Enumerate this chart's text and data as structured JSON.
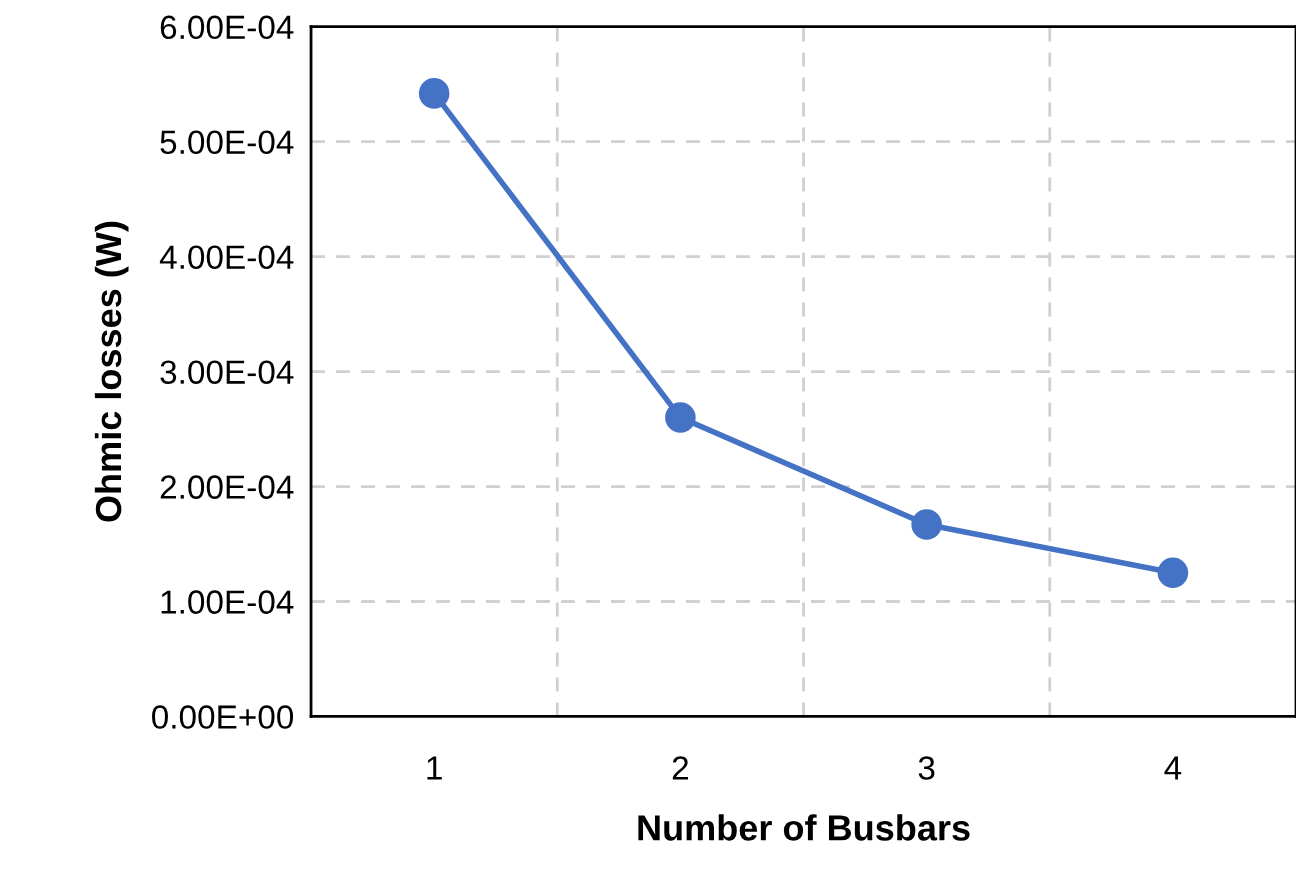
{
  "chart_data": {
    "type": "line",
    "xlabel": "Number of Busbars",
    "ylabel": "Ohmic losses (W)",
    "categories": [
      "1",
      "2",
      "3",
      "4"
    ],
    "series": [
      {
        "color": "#4472c4",
        "values": [
          0.000542,
          0.00026,
          0.000167,
          0.000125
        ]
      }
    ],
    "ylim": [
      0,
      0.0006
    ],
    "yticks": [
      {
        "value": 0,
        "label": "0.00E+00"
      },
      {
        "value": 0.0001,
        "label": "1.00E-04"
      },
      {
        "value": 0.0002,
        "label": "2.00E-04"
      },
      {
        "value": 0.0003,
        "label": "3.00E-04"
      },
      {
        "value": 0.0004,
        "label": "4.00E-04"
      },
      {
        "value": 0.0005,
        "label": "5.00E-04"
      },
      {
        "value": 0.0006,
        "label": "6.00E-04"
      }
    ],
    "grid": true,
    "marker": "circle",
    "line_style": "solid",
    "legend": false
  }
}
